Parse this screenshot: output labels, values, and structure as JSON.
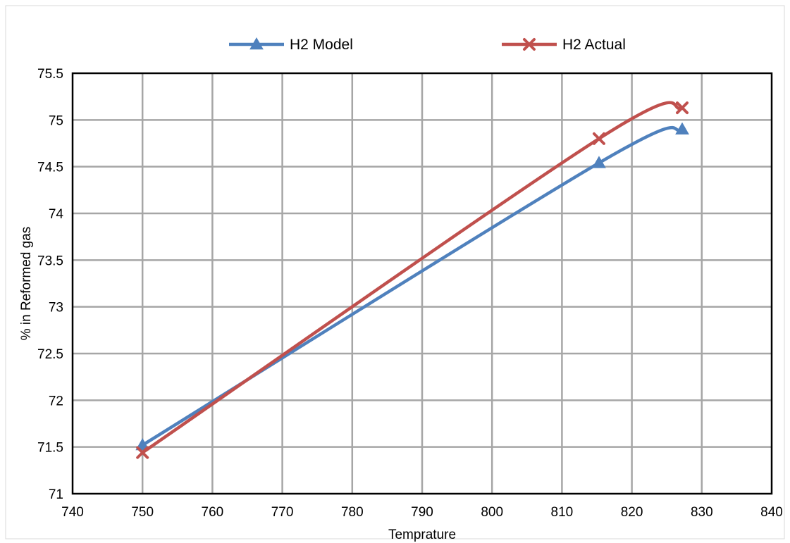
{
  "chart_data": {
    "type": "line",
    "xlabel": "Temprature",
    "ylabel": "% in Reformed gas",
    "xlim": [
      740,
      840
    ],
    "ylim": [
      71,
      75.5
    ],
    "x_ticks": [
      "740",
      "750",
      "760",
      "770",
      "780",
      "790",
      "800",
      "810",
      "820",
      "830",
      "840"
    ],
    "y_ticks": [
      "71",
      "71.5",
      "72",
      "72.5",
      "73",
      "73.5",
      "74",
      "74.5",
      "75",
      "75.5"
    ],
    "grid": true,
    "legend_position": "top",
    "series": [
      {
        "name": "H2  Model",
        "color": "#4f81bd",
        "marker": "triangle",
        "x": [
          750,
          815.3,
          827.2
        ],
        "y": [
          71.52,
          74.54,
          74.9
        ]
      },
      {
        "name": "H2  Actual",
        "color": "#c0504d",
        "marker": "x",
        "x": [
          750,
          815.3,
          827.2
        ],
        "y": [
          71.44,
          74.8,
          75.13
        ]
      }
    ]
  }
}
